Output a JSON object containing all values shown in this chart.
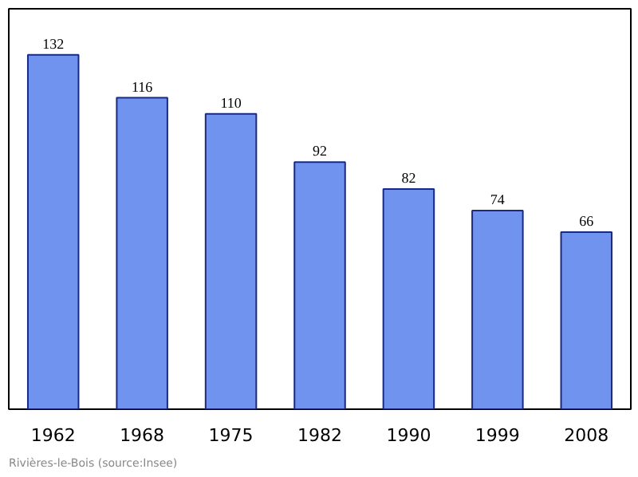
{
  "chart_data": {
    "type": "bar",
    "categories": [
      "1962",
      "1968",
      "1975",
      "1982",
      "1990",
      "1999",
      "2008"
    ],
    "values": [
      132,
      116,
      110,
      92,
      82,
      74,
      66
    ],
    "color": "#7093f0",
    "data_labels": true,
    "grid": false,
    "annotations": [
      "Rivières-le-Bois    (source:Insee)"
    ]
  }
}
